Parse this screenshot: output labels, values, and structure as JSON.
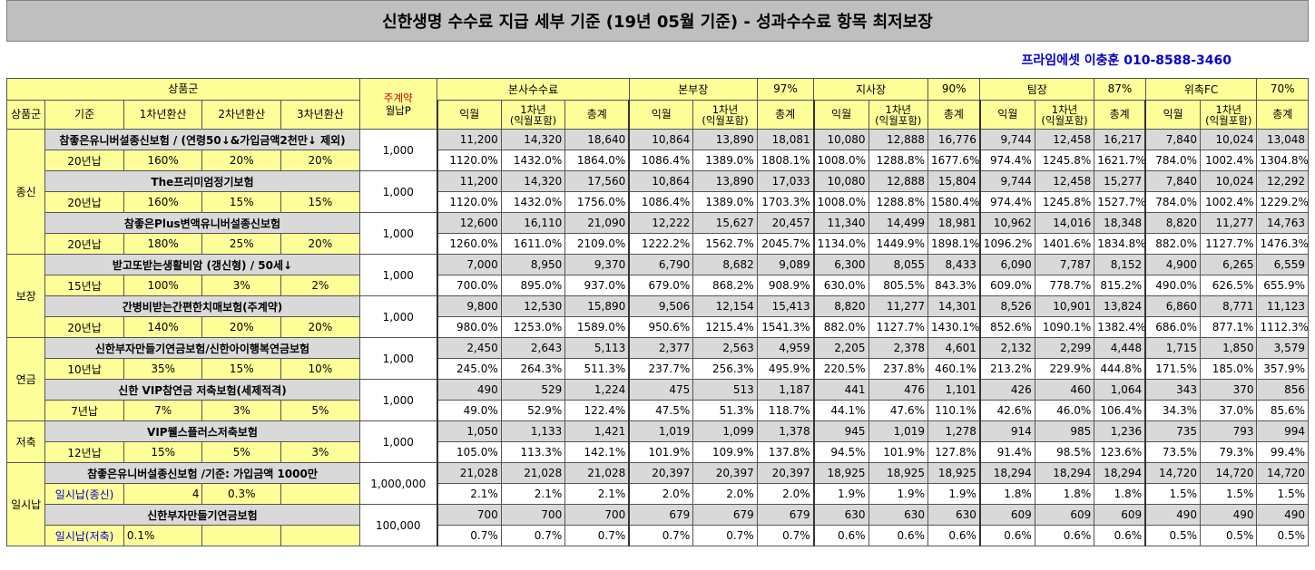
{
  "title": "신한생명 수수료 지급 세부 기준 (19년 05월 기준) - 성과수수료 항목 최저보장",
  "contact": "프라임에셋 이충훈 010-8588-3460",
  "header": {
    "product_group": "상품군",
    "main_contract": "주계약",
    "monthly_premium": "월납P",
    "hq_fee": "본사수수료",
    "bonbujang": "본부장",
    "bonbujang_pct": "97%",
    "jisajang": "지사장",
    "jisajang_pct": "90%",
    "teamjang": "팀장",
    "teamjang_pct": "87%",
    "wichuk": "위촉FC",
    "wichuk_pct": "70%",
    "col_group": "상품군",
    "col_basis": "기준",
    "col_y1": "1차년환산",
    "col_y2": "2차년환산",
    "col_y3": "3차년환산",
    "ikwol": "익월",
    "first_year": "1차년\n(익월포함)",
    "total": "총계"
  },
  "groups": [
    {
      "name": "종신",
      "products": [
        {
          "name": "참좋은유니버설종신보험 / (연령50↓&가입금액2천만↓ 제외)",
          "basis": "20년납",
          "y1": "160%",
          "y2": "20%",
          "y3": "20%",
          "premium": "1,000",
          "values": [
            "11,200",
            "14,320",
            "18,640",
            "10,864",
            "13,890",
            "18,081",
            "10,080",
            "12,888",
            "16,776",
            "9,744",
            "12,458",
            "16,217",
            "7,840",
            "10,024",
            "13,048"
          ],
          "pcts": [
            "1120.0%",
            "1432.0%",
            "1864.0%",
            "1086.4%",
            "1389.0%",
            "1808.1%",
            "1008.0%",
            "1288.8%",
            "1677.6%",
            "974.4%",
            "1245.8%",
            "1621.7%",
            "784.0%",
            "1002.4%",
            "1304.8%"
          ]
        },
        {
          "name": "The프리미엄정기보험",
          "basis": "20년납",
          "y1": "160%",
          "y2": "15%",
          "y3": "15%",
          "premium": "1,000",
          "values": [
            "11,200",
            "14,320",
            "17,560",
            "10,864",
            "13,890",
            "17,033",
            "10,080",
            "12,888",
            "15,804",
            "9,744",
            "12,458",
            "15,277",
            "7,840",
            "10,024",
            "12,292"
          ],
          "pcts": [
            "1120.0%",
            "1432.0%",
            "1756.0%",
            "1086.4%",
            "1389.0%",
            "1703.3%",
            "1008.0%",
            "1288.8%",
            "1580.4%",
            "974.4%",
            "1245.8%",
            "1527.7%",
            "784.0%",
            "1002.4%",
            "1229.2%"
          ]
        },
        {
          "name": "참좋은Plus변액유니버설종신보험",
          "basis": "20년납",
          "y1": "180%",
          "y2": "25%",
          "y3": "20%",
          "premium": "1,000",
          "values": [
            "12,600",
            "16,110",
            "21,090",
            "12,222",
            "15,627",
            "20,457",
            "11,340",
            "14,499",
            "18,981",
            "10,962",
            "14,016",
            "18,348",
            "8,820",
            "11,277",
            "14,763"
          ],
          "pcts": [
            "1260.0%",
            "1611.0%",
            "2109.0%",
            "1222.2%",
            "1562.7%",
            "2045.7%",
            "1134.0%",
            "1449.9%",
            "1898.1%",
            "1096.2%",
            "1401.6%",
            "1834.8%",
            "882.0%",
            "1127.7%",
            "1476.3%"
          ]
        }
      ]
    },
    {
      "name": "보장",
      "products": [
        {
          "name": "받고또받는생활비암 (갱신형) / 50세↓",
          "basis": "15년납",
          "y1": "100%",
          "y2": "3%",
          "y3": "2%",
          "premium": "1,000",
          "values": [
            "7,000",
            "8,950",
            "9,370",
            "6,790",
            "8,682",
            "9,089",
            "6,300",
            "8,055",
            "8,433",
            "6,090",
            "7,787",
            "8,152",
            "4,900",
            "6,265",
            "6,559"
          ],
          "pcts": [
            "700.0%",
            "895.0%",
            "937.0%",
            "679.0%",
            "868.2%",
            "908.9%",
            "630.0%",
            "805.5%",
            "843.3%",
            "609.0%",
            "778.7%",
            "815.2%",
            "490.0%",
            "626.5%",
            "655.9%"
          ]
        },
        {
          "name": "간병비받는간편한치매보험(주계약)",
          "basis": "20년납",
          "y1": "140%",
          "y2": "20%",
          "y3": "20%",
          "premium": "1,000",
          "values": [
            "9,800",
            "12,530",
            "15,890",
            "9,506",
            "12,154",
            "15,413",
            "8,820",
            "11,277",
            "14,301",
            "8,526",
            "10,901",
            "13,824",
            "6,860",
            "8,771",
            "11,123"
          ],
          "pcts": [
            "980.0%",
            "1253.0%",
            "1589.0%",
            "950.6%",
            "1215.4%",
            "1541.3%",
            "882.0%",
            "1127.7%",
            "1430.1%",
            "852.6%",
            "1090.1%",
            "1382.4%",
            "686.0%",
            "877.1%",
            "1112.3%"
          ]
        }
      ]
    },
    {
      "name": "연금",
      "products": [
        {
          "name": "신한부자만들기연금보험/신한아이행복연금보험",
          "basis": "10년납",
          "y1": "35%",
          "y2": "15%",
          "y3": "10%",
          "premium": "1,000",
          "values": [
            "2,450",
            "2,643",
            "5,113",
            "2,377",
            "2,563",
            "4,959",
            "2,205",
            "2,378",
            "4,601",
            "2,132",
            "2,299",
            "4,448",
            "1,715",
            "1,850",
            "3,579"
          ],
          "pcts": [
            "245.0%",
            "264.3%",
            "511.3%",
            "237.7%",
            "256.3%",
            "495.9%",
            "220.5%",
            "237.8%",
            "460.1%",
            "213.2%",
            "229.9%",
            "444.8%",
            "171.5%",
            "185.0%",
            "357.9%"
          ]
        },
        {
          "name": "신한 VIP참연금 저축보험(세제적격)",
          "basis": "7년납",
          "y1": "7%",
          "y2": "3%",
          "y3": "5%",
          "premium": "1,000",
          "values": [
            "490",
            "529",
            "1,224",
            "475",
            "513",
            "1,187",
            "441",
            "476",
            "1,101",
            "426",
            "460",
            "1,064",
            "343",
            "370",
            "856"
          ],
          "pcts": [
            "49.0%",
            "52.9%",
            "122.4%",
            "47.5%",
            "51.3%",
            "118.7%",
            "44.1%",
            "47.6%",
            "110.1%",
            "42.6%",
            "46.0%",
            "106.4%",
            "34.3%",
            "37.0%",
            "85.6%"
          ]
        }
      ]
    },
    {
      "name": "저축",
      "products": [
        {
          "name": "VIP웰스플러스저축보험",
          "basis": "12년납",
          "y1": "15%",
          "y2": "5%",
          "y3": "3%",
          "premium": "1,000",
          "values": [
            "1,050",
            "1,133",
            "1,421",
            "1,019",
            "1,099",
            "1,378",
            "945",
            "1,019",
            "1,278",
            "914",
            "985",
            "1,236",
            "735",
            "793",
            "994"
          ],
          "pcts": [
            "105.0%",
            "113.3%",
            "142.1%",
            "101.9%",
            "109.9%",
            "137.8%",
            "94.5%",
            "101.9%",
            "127.8%",
            "91.4%",
            "98.5%",
            "123.6%",
            "73.5%",
            "79.3%",
            "99.4%"
          ]
        }
      ]
    },
    {
      "name": "일시납",
      "products": [
        {
          "name": "참좋은유니버설종신보험 /기준: 가입금액 1000만",
          "basis": "일시납(종신)",
          "y1": "4",
          "y2": "0.3%",
          "y3": "",
          "premium": "1,000,000",
          "values": [
            "21,028",
            "21,028",
            "21,028",
            "20,397",
            "20,397",
            "20,397",
            "18,925",
            "18,925",
            "18,925",
            "18,294",
            "18,294",
            "18,294",
            "14,720",
            "14,720",
            "14,720"
          ],
          "pcts": [
            "2.1%",
            "2.1%",
            "2.1%",
            "2.0%",
            "2.0%",
            "2.0%",
            "1.9%",
            "1.9%",
            "1.9%",
            "1.8%",
            "1.8%",
            "1.8%",
            "1.5%",
            "1.5%",
            "1.5%"
          ]
        },
        {
          "name": "신한부자만들기연금보험",
          "basis": "일시납(저축)",
          "y1": "0.1%",
          "y2": "",
          "y3": "",
          "premium": "100,000",
          "values": [
            "700",
            "700",
            "700",
            "679",
            "679",
            "679",
            "630",
            "630",
            "630",
            "609",
            "609",
            "609",
            "490",
            "490",
            "490"
          ],
          "pcts": [
            "0.7%",
            "0.7%",
            "0.7%",
            "0.7%",
            "0.7%",
            "0.7%",
            "0.6%",
            "0.6%",
            "0.6%",
            "0.6%",
            "0.6%",
            "0.6%",
            "0.5%",
            "0.5%",
            "0.5%"
          ]
        }
      ]
    }
  ]
}
